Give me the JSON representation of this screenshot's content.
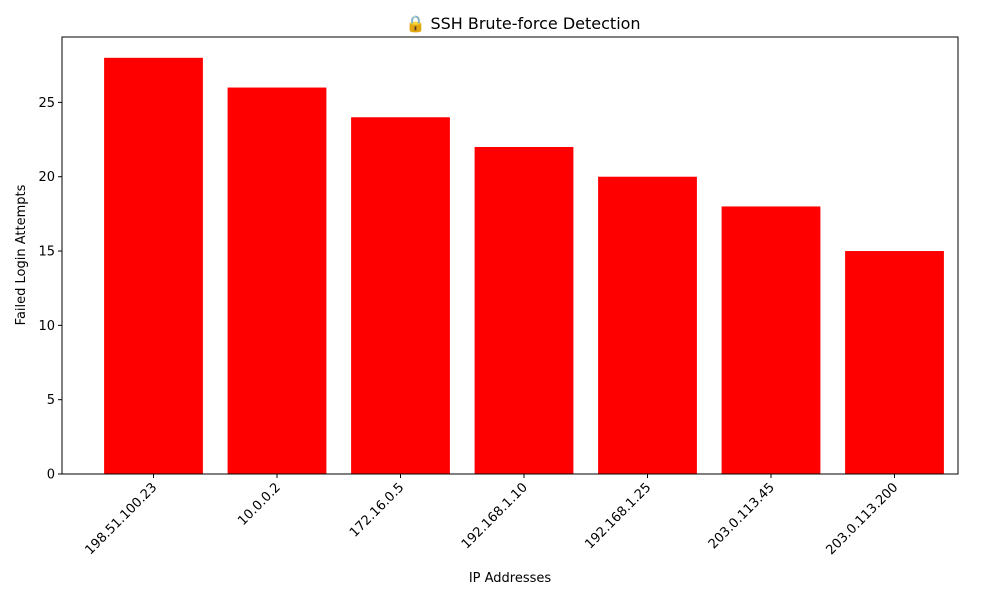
{
  "chart_data": {
    "type": "bar",
    "title": "🔒 SSH Brute-force Detection",
    "xlabel": "IP Addresses",
    "ylabel": "Failed Login Attempts",
    "categories": [
      "198.51.100.23",
      "10.0.0.2",
      "172.16.0.5",
      "192.168.1.10",
      "192.168.1.25",
      "203.0.113.45",
      "203.0.113.200"
    ],
    "values": [
      28,
      26,
      24,
      22,
      20,
      18,
      15
    ],
    "yticks": [
      0,
      5,
      10,
      15,
      20,
      25
    ],
    "ylim": [
      0,
      29.4
    ],
    "bar_color": "#ff0000",
    "grid": false,
    "legend": "none"
  }
}
